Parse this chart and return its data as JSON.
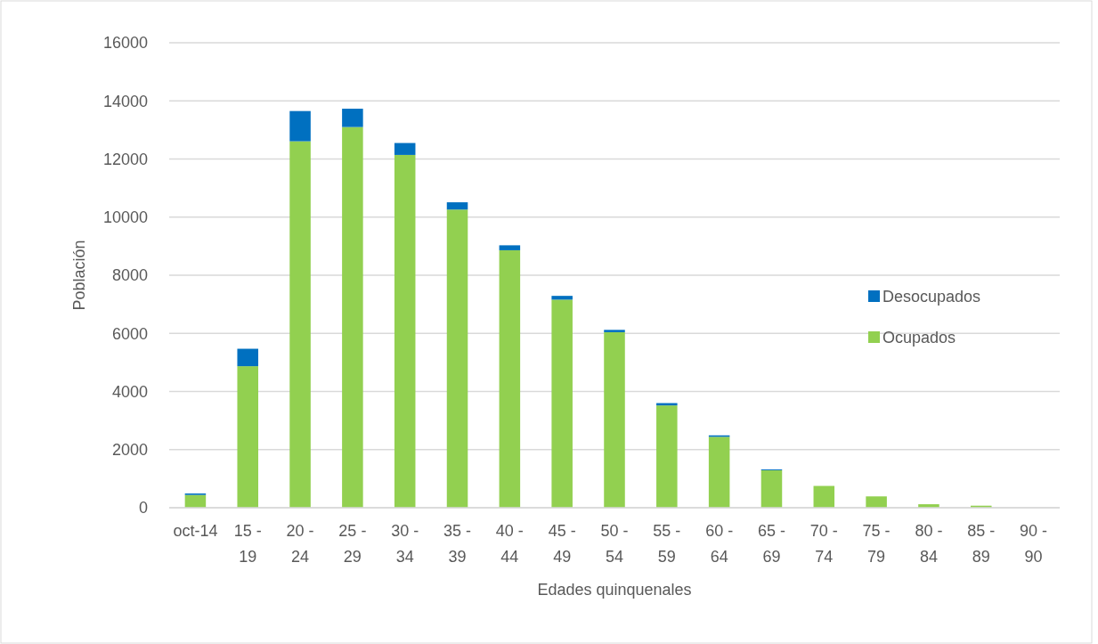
{
  "chart_data": {
    "type": "bar",
    "stacked": true,
    "xlabel": "Edades quinquenales",
    "ylabel": "Población",
    "categories": [
      "oct-14",
      "15 - 19",
      "20 - 24",
      "25 - 29",
      "30 - 34",
      "35 - 39",
      "40 - 44",
      "45 - 49",
      "50 - 54",
      "55 - 59",
      "60 - 64",
      "65 - 69",
      "70 - 74",
      "75 - 79",
      "80 - 84",
      "85 - 89",
      "90 - 90"
    ],
    "series": [
      {
        "name": "Ocupados",
        "color": "#92d050",
        "values": [
          440,
          4870,
          12610,
          13100,
          12140,
          10260,
          8860,
          7160,
          6040,
          3520,
          2440,
          1290,
          750,
          390,
          120,
          70,
          0
        ]
      },
      {
        "name": "Desocupados",
        "color": "#0070c0",
        "values": [
          50,
          600,
          1040,
          630,
          410,
          250,
          170,
          130,
          80,
          80,
          50,
          30,
          0,
          0,
          0,
          0,
          0
        ]
      }
    ],
    "ylim": [
      0,
      16000
    ],
    "yticks": [
      0,
      2000,
      4000,
      6000,
      8000,
      10000,
      12000,
      14000,
      16000
    ],
    "grid": "y",
    "legend": "right"
  }
}
